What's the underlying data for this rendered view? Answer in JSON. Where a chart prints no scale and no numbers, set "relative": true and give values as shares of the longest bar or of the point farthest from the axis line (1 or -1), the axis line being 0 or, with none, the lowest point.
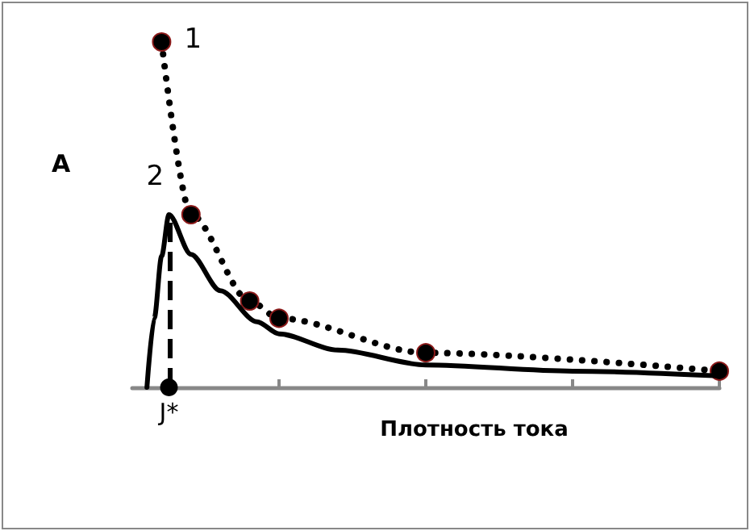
{
  "chart_data": {
    "type": "line",
    "relative": true,
    "xlabel": "Плотность тока",
    "ylabel": "A",
    "categories": [
      null,
      null,
      null,
      null,
      null,
      null,
      null,
      null,
      null,
      null,
      null,
      null,
      null,
      null,
      null,
      null,
      null,
      null,
      null,
      null,
      null,
      null,
      null,
      null,
      null,
      null,
      null,
      null,
      null,
      null,
      null,
      null,
      null,
      null,
      null,
      null,
      null,
      null,
      null,
      null,
      null,
      null,
      null,
      null,
      null,
      null,
      null,
      null,
      null,
      null,
      null,
      null,
      null,
      null,
      null,
      null,
      null,
      null,
      null,
      null,
      null,
      null,
      null,
      null,
      null,
      null,
      null,
      null,
      null,
      null,
      null,
      null,
      null,
      null,
      null,
      null,
      null,
      null,
      null,
      null,
      null
    ],
    "series": [
      {
        "color": "#000000",
        "marker": "circle",
        "line_style": "dotted",
        "values": [
          null,
          null,
          null,
          null,
          1,
          null,
          null,
          null,
          0.5,
          null,
          null,
          null,
          null,
          null,
          null,
          null,
          0.25,
          null,
          null,
          null,
          0.2,
          null,
          null,
          null,
          null,
          null,
          null,
          null,
          null,
          null,
          null,
          null,
          null,
          null,
          null,
          null,
          null,
          null,
          null,
          null,
          0.1,
          null,
          null,
          null,
          null,
          null,
          null,
          null,
          null,
          null,
          null,
          null,
          null,
          null,
          null,
          null,
          null,
          null,
          null,
          null,
          null,
          null,
          null,
          null,
          null,
          null,
          null,
          null,
          null,
          null,
          null,
          null,
          null,
          null,
          null,
          null,
          null,
          null,
          null,
          null,
          0.047
        ]
      },
      {
        "color": "#000000",
        "marker": "none",
        "line_style": "solid",
        "values": [
          null,
          null,
          0,
          0.2,
          0.38,
          0.5,
          null,
          null,
          0.385,
          null,
          null,
          null,
          0.28,
          null,
          null,
          null,
          null,
          0.19,
          null,
          null,
          0.155,
          null,
          null,
          null,
          null,
          null,
          null,
          null,
          0.108,
          null,
          null,
          null,
          null,
          null,
          null,
          null,
          null,
          null,
          null,
          null,
          0.065,
          null,
          null,
          null,
          null,
          null,
          null,
          null,
          null,
          null,
          null,
          null,
          null,
          null,
          null,
          null,
          null,
          null,
          null,
          null,
          0.047,
          null,
          null,
          null,
          null,
          null,
          null,
          null,
          null,
          null,
          null,
          null,
          null,
          null,
          null,
          null,
          null,
          null,
          null,
          null,
          0.033
        ]
      }
    ],
    "annotations": [
      "1",
      "2",
      "J*"
    ],
    "grid": false
  }
}
